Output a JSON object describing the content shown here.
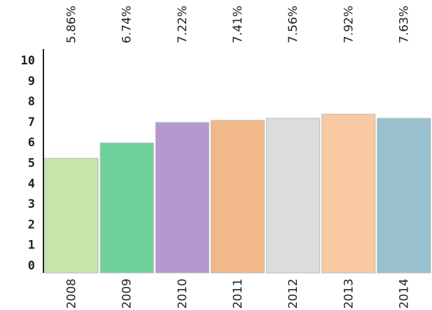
{
  "chart_data": {
    "type": "bar",
    "categories": [
      "2008",
      "2009",
      "2010",
      "2011",
      "2012",
      "2013",
      "2014"
    ],
    "values": [
      5.25,
      6.0,
      7.0,
      7.1,
      7.2,
      7.4,
      7.2
    ],
    "colors": [
      "#c5e6a6",
      "#70d29b",
      "#b598d0",
      "#f1b98a",
      "#dcdcdc",
      "#f9c9a1",
      "#98c0cd"
    ],
    "annotations": [
      "5.86%",
      "6.74%",
      "7.22%",
      "7.41%",
      "7.56%",
      "7.92%",
      "7.63%"
    ],
    "ylim": [
      0,
      10
    ],
    "yticks": [
      0,
      1,
      2,
      3,
      4,
      5,
      6,
      7,
      8,
      9,
      10
    ]
  }
}
